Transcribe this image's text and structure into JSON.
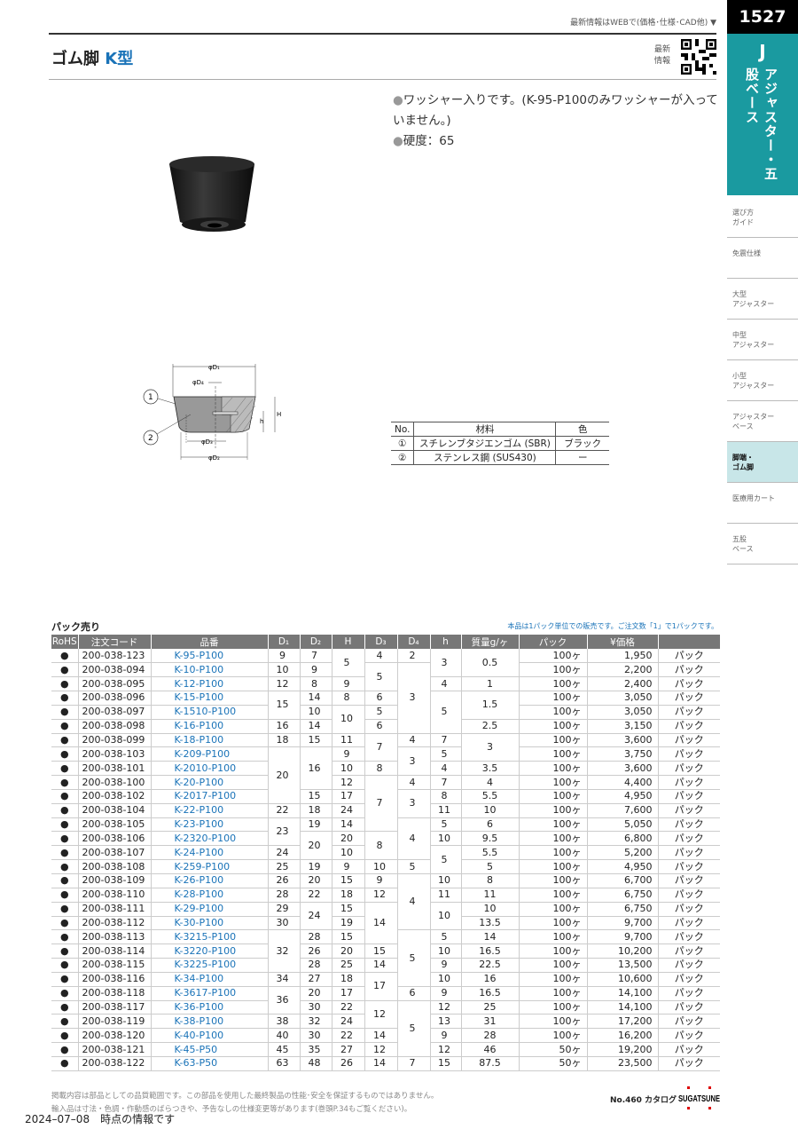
{
  "header": {
    "web_note": "最新情報はWEBで(価格･仕様･CAD他) ▼",
    "title_main": "ゴム脚",
    "title_type": "K型",
    "qr_label": "最新\n情報"
  },
  "tab": {
    "page": "1527",
    "letter": "J",
    "section": "アジャスター・五股ベース"
  },
  "sidebar": {
    "items": [
      {
        "label": "選び方\nガイド",
        "active": false
      },
      {
        "label": "免震仕様",
        "active": false
      },
      {
        "label": "大型\nアジャスター",
        "active": false
      },
      {
        "label": "中型\nアジャスター",
        "active": false
      },
      {
        "label": "小型\nアジャスター",
        "active": false
      },
      {
        "label": "アジャスター\nベース",
        "active": false
      },
      {
        "label": "脚端・\nゴム脚",
        "active": true
      },
      {
        "label": "医療用カート",
        "active": false
      },
      {
        "label": "五股\nベース",
        "active": false
      }
    ]
  },
  "bullets": [
    "ワッシャー入りです。(K-95-P100のみワッシャーが入っていません。)",
    "硬度：65"
  ],
  "diagram": {
    "labels": {
      "d1": "φD₁",
      "d2": "φD₂",
      "d3": "φD₃",
      "d4": "φD₄",
      "H": "H",
      "h": "h",
      "c1": "1",
      "c2": "2"
    }
  },
  "materials": {
    "headers": [
      "No.",
      "材料",
      "色"
    ],
    "rows": [
      [
        "①",
        "スチレンブタジエンゴム (SBR)",
        "ブラック"
      ],
      [
        "②",
        "ステンレス鋼 (SUS430)",
        "ー"
      ]
    ]
  },
  "pack": {
    "label": "パック売り",
    "note": "本品は1パック単位での販売です。ご注文数「1」で1パックです。"
  },
  "table": {
    "headers": [
      "RoHS",
      "注文コード",
      "品番",
      "D₁",
      "D₂",
      "H",
      "D₃",
      "D₄",
      "h",
      "質量g/ヶ",
      "パック",
      "¥価格",
      ""
    ],
    "rows": [
      [
        "●",
        "200-038-123",
        "K-95-P100",
        "9",
        "7",
        {
          "v": "5",
          "rs": 2
        },
        "4",
        "2",
        {
          "v": "3",
          "rs": 2
        },
        {
          "v": "0.5",
          "rs": 2
        },
        "100ヶ",
        "1,950",
        "パック"
      ],
      [
        "●",
        "200-038-094",
        "K-10-P100",
        "10",
        "9",
        null,
        {
          "v": "5",
          "rs": 2
        },
        {
          "v": "3",
          "rs": 5
        },
        null,
        null,
        "100ヶ",
        "2,200",
        "パック"
      ],
      [
        "●",
        "200-038-095",
        "K-12-P100",
        "12",
        "8",
        "9",
        null,
        null,
        "4",
        "1",
        "100ヶ",
        "2,400",
        "パック"
      ],
      [
        "●",
        "200-038-096",
        "K-15-P100",
        {
          "v": "15",
          "rs": 2
        },
        "14",
        "8",
        "6",
        null,
        {
          "v": "5",
          "rs": 3
        },
        {
          "v": "1.5",
          "rs": 2
        },
        "100ヶ",
        "3,050",
        "パック"
      ],
      [
        "●",
        "200-038-097",
        "K-1510-P100",
        null,
        "10",
        {
          "v": "10",
          "rs": 2
        },
        "5",
        null,
        null,
        null,
        "100ヶ",
        "3,050",
        "パック"
      ],
      [
        "●",
        "200-038-098",
        "K-16-P100",
        "16",
        "14",
        null,
        "6",
        null,
        null,
        "2.5",
        "100ヶ",
        "3,150",
        "パック"
      ],
      [
        "●",
        "200-038-099",
        "K-18-P100",
        "18",
        "15",
        "11",
        {
          "v": "7",
          "rs": 2
        },
        "4",
        "7",
        {
          "v": "3",
          "rs": 2
        },
        "100ヶ",
        "3,600",
        "パック"
      ],
      [
        "●",
        "200-038-103",
        "K-209-P100",
        {
          "v": "20",
          "rs": 4
        },
        {
          "v": "16",
          "rs": 3
        },
        "9",
        null,
        {
          "v": "3",
          "rs": 2
        },
        "5",
        null,
        "100ヶ",
        "3,750",
        "パック"
      ],
      [
        "●",
        "200-038-101",
        "K-2010-P100",
        null,
        null,
        "10",
        "8",
        null,
        "4",
        "3.5",
        "100ヶ",
        "3,600",
        "パック"
      ],
      [
        "●",
        "200-038-100",
        "K-20-P100",
        null,
        null,
        "12",
        {
          "v": "7",
          "rs": 4
        },
        "4",
        "7",
        "4",
        "100ヶ",
        "4,400",
        "パック"
      ],
      [
        "●",
        "200-038-102",
        "K-2017-P100",
        null,
        "15",
        "17",
        null,
        {
          "v": "3",
          "rs": 2
        },
        "8",
        "5.5",
        "100ヶ",
        "4,950",
        "パック"
      ],
      [
        "●",
        "200-038-104",
        "K-22-P100",
        "22",
        "18",
        "24",
        null,
        null,
        "11",
        "10",
        "100ヶ",
        "7,600",
        "パック"
      ],
      [
        "●",
        "200-038-105",
        "K-23-P100",
        {
          "v": "23",
          "rs": 2
        },
        "19",
        "14",
        null,
        {
          "v": "4",
          "rs": 3
        },
        "5",
        "6",
        "100ヶ",
        "5,050",
        "パック"
      ],
      [
        "●",
        "200-038-106",
        "K-2320-P100",
        null,
        {
          "v": "20",
          "rs": 2
        },
        "20",
        {
          "v": "8",
          "rs": 2
        },
        null,
        "10",
        "9.5",
        "100ヶ",
        "6,800",
        "パック"
      ],
      [
        "●",
        "200-038-107",
        "K-24-P100",
        "24",
        null,
        "10",
        null,
        null,
        {
          "v": "5",
          "rs": 2
        },
        "5.5",
        "100ヶ",
        "5,200",
        "パック"
      ],
      [
        "●",
        "200-038-108",
        "K-259-P100",
        "25",
        "19",
        "9",
        "10",
        "5",
        null,
        "5",
        "100ヶ",
        "4,950",
        "パック"
      ],
      [
        "●",
        "200-038-109",
        "K-26-P100",
        "26",
        "20",
        "15",
        "9",
        {
          "v": "4",
          "rs": 4
        },
        "10",
        "8",
        "100ヶ",
        "6,700",
        "パック"
      ],
      [
        "●",
        "200-038-110",
        "K-28-P100",
        "28",
        "22",
        "18",
        "12",
        null,
        "11",
        "11",
        "100ヶ",
        "6,750",
        "パック"
      ],
      [
        "●",
        "200-038-111",
        "K-29-P100",
        "29",
        {
          "v": "24",
          "rs": 2
        },
        "15",
        {
          "v": "14",
          "rs": 3
        },
        null,
        {
          "v": "10",
          "rs": 2
        },
        "10",
        "100ヶ",
        "6,750",
        "パック"
      ],
      [
        "●",
        "200-038-112",
        "K-30-P100",
        "30",
        null,
        "19",
        null,
        null,
        null,
        "13.5",
        "100ヶ",
        "9,700",
        "パック"
      ],
      [
        "●",
        "200-038-113",
        "K-3215-P100",
        {
          "v": "32",
          "rs": 3
        },
        "28",
        "15",
        null,
        {
          "v": "5",
          "rs": 4
        },
        "5",
        "14",
        "100ヶ",
        "9,700",
        "パック"
      ],
      [
        "●",
        "200-038-114",
        "K-3220-P100",
        null,
        "26",
        "20",
        "15",
        null,
        "10",
        "16.5",
        "100ヶ",
        "10,200",
        "パック"
      ],
      [
        "●",
        "200-038-115",
        "K-3225-P100",
        null,
        "28",
        "25",
        "14",
        null,
        "9",
        "22.5",
        "100ヶ",
        "13,500",
        "パック"
      ],
      [
        "●",
        "200-038-116",
        "K-34-P100",
        "34",
        "27",
        "18",
        {
          "v": "17",
          "rs": 2
        },
        null,
        "10",
        "16",
        "100ヶ",
        "10,600",
        "パック"
      ],
      [
        "●",
        "200-038-118",
        "K-3617-P100",
        {
          "v": "36",
          "rs": 2
        },
        "20",
        "17",
        null,
        "6",
        "9",
        "16.5",
        "100ヶ",
        "14,100",
        "パック"
      ],
      [
        "●",
        "200-038-117",
        "K-36-P100",
        null,
        "30",
        "22",
        {
          "v": "12",
          "rs": 2
        },
        {
          "v": "5",
          "rs": 4
        },
        "12",
        "25",
        "100ヶ",
        "14,100",
        "パック"
      ],
      [
        "●",
        "200-038-119",
        "K-38-P100",
        "38",
        "32",
        "24",
        null,
        null,
        "13",
        "31",
        "100ヶ",
        "17,200",
        "パック"
      ],
      [
        "●",
        "200-038-120",
        "K-40-P100",
        "40",
        "30",
        "22",
        "14",
        null,
        "9",
        "28",
        "100ヶ",
        "16,200",
        "パック"
      ],
      [
        "●",
        "200-038-121",
        "K-45-P50",
        "45",
        "35",
        "27",
        "12",
        null,
        "12",
        "46",
        "50ヶ",
        "19,200",
        "パック"
      ],
      [
        "●",
        "200-038-122",
        "K-63-P50",
        "63",
        "48",
        "26",
        "14",
        "7",
        "15",
        "87.5",
        "50ヶ",
        "23,500",
        "パック"
      ]
    ]
  },
  "footer": {
    "note1": "掲載内容は部品としての品質範囲です。この部品を使用した最終製品の性能･安全を保証するものではありません。",
    "note2": "輸入品は寸法・色調・作動感のばらつきや、予告なしの仕様変更等があります(巻頭P.34もご覧ください)。",
    "date": "2024–07–08　時点の情報です",
    "catalog": "No.460 カタログ",
    "logo": "SUGATSUNE"
  },
  "colors": {
    "accent": "#1a9aa0",
    "part_link": "#1a73b8",
    "sidebar_active": "#c8e6e8"
  }
}
